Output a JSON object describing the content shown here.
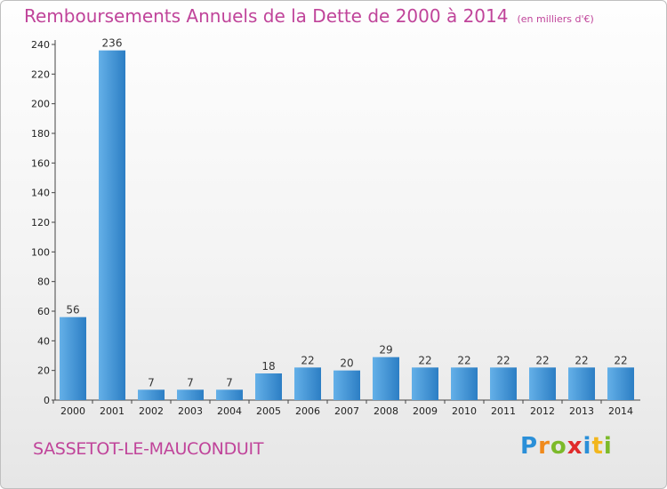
{
  "title": "Remboursements Annuels de la Dette de 2000 à 2014",
  "subtitle": "(en milliers d'€)",
  "town": "SASSETOT-LE-MAUCONDUIT",
  "logo": {
    "letters": [
      "P",
      "r",
      "o",
      "x",
      "i",
      "t",
      "i"
    ],
    "colors": [
      "#2a8fd8",
      "#f08a1c",
      "#7cba2a",
      "#e02b2b",
      "#2a8fd8",
      "#f2b61d",
      "#7cba2a"
    ]
  },
  "colors": {
    "bar_light": "#64b0e8",
    "bar_dark": "#2c7ec4",
    "accent": "#c0449a"
  },
  "chart_data": {
    "type": "bar",
    "title": "Remboursements Annuels de la Dette de 2000 à 2014",
    "subtitle": "(en milliers d'€)",
    "categories": [
      "2000",
      "2001",
      "2002",
      "2003",
      "2004",
      "2005",
      "2006",
      "2007",
      "2008",
      "2009",
      "2010",
      "2011",
      "2012",
      "2013",
      "2014"
    ],
    "values": [
      56,
      236,
      7,
      7,
      7,
      18,
      22,
      20,
      29,
      22,
      22,
      22,
      22,
      22,
      22
    ],
    "ylim": [
      0,
      240
    ],
    "yticks": [
      0,
      20,
      40,
      60,
      80,
      100,
      120,
      140,
      160,
      180,
      200,
      220,
      240
    ],
    "grid": false,
    "legend": "none"
  }
}
